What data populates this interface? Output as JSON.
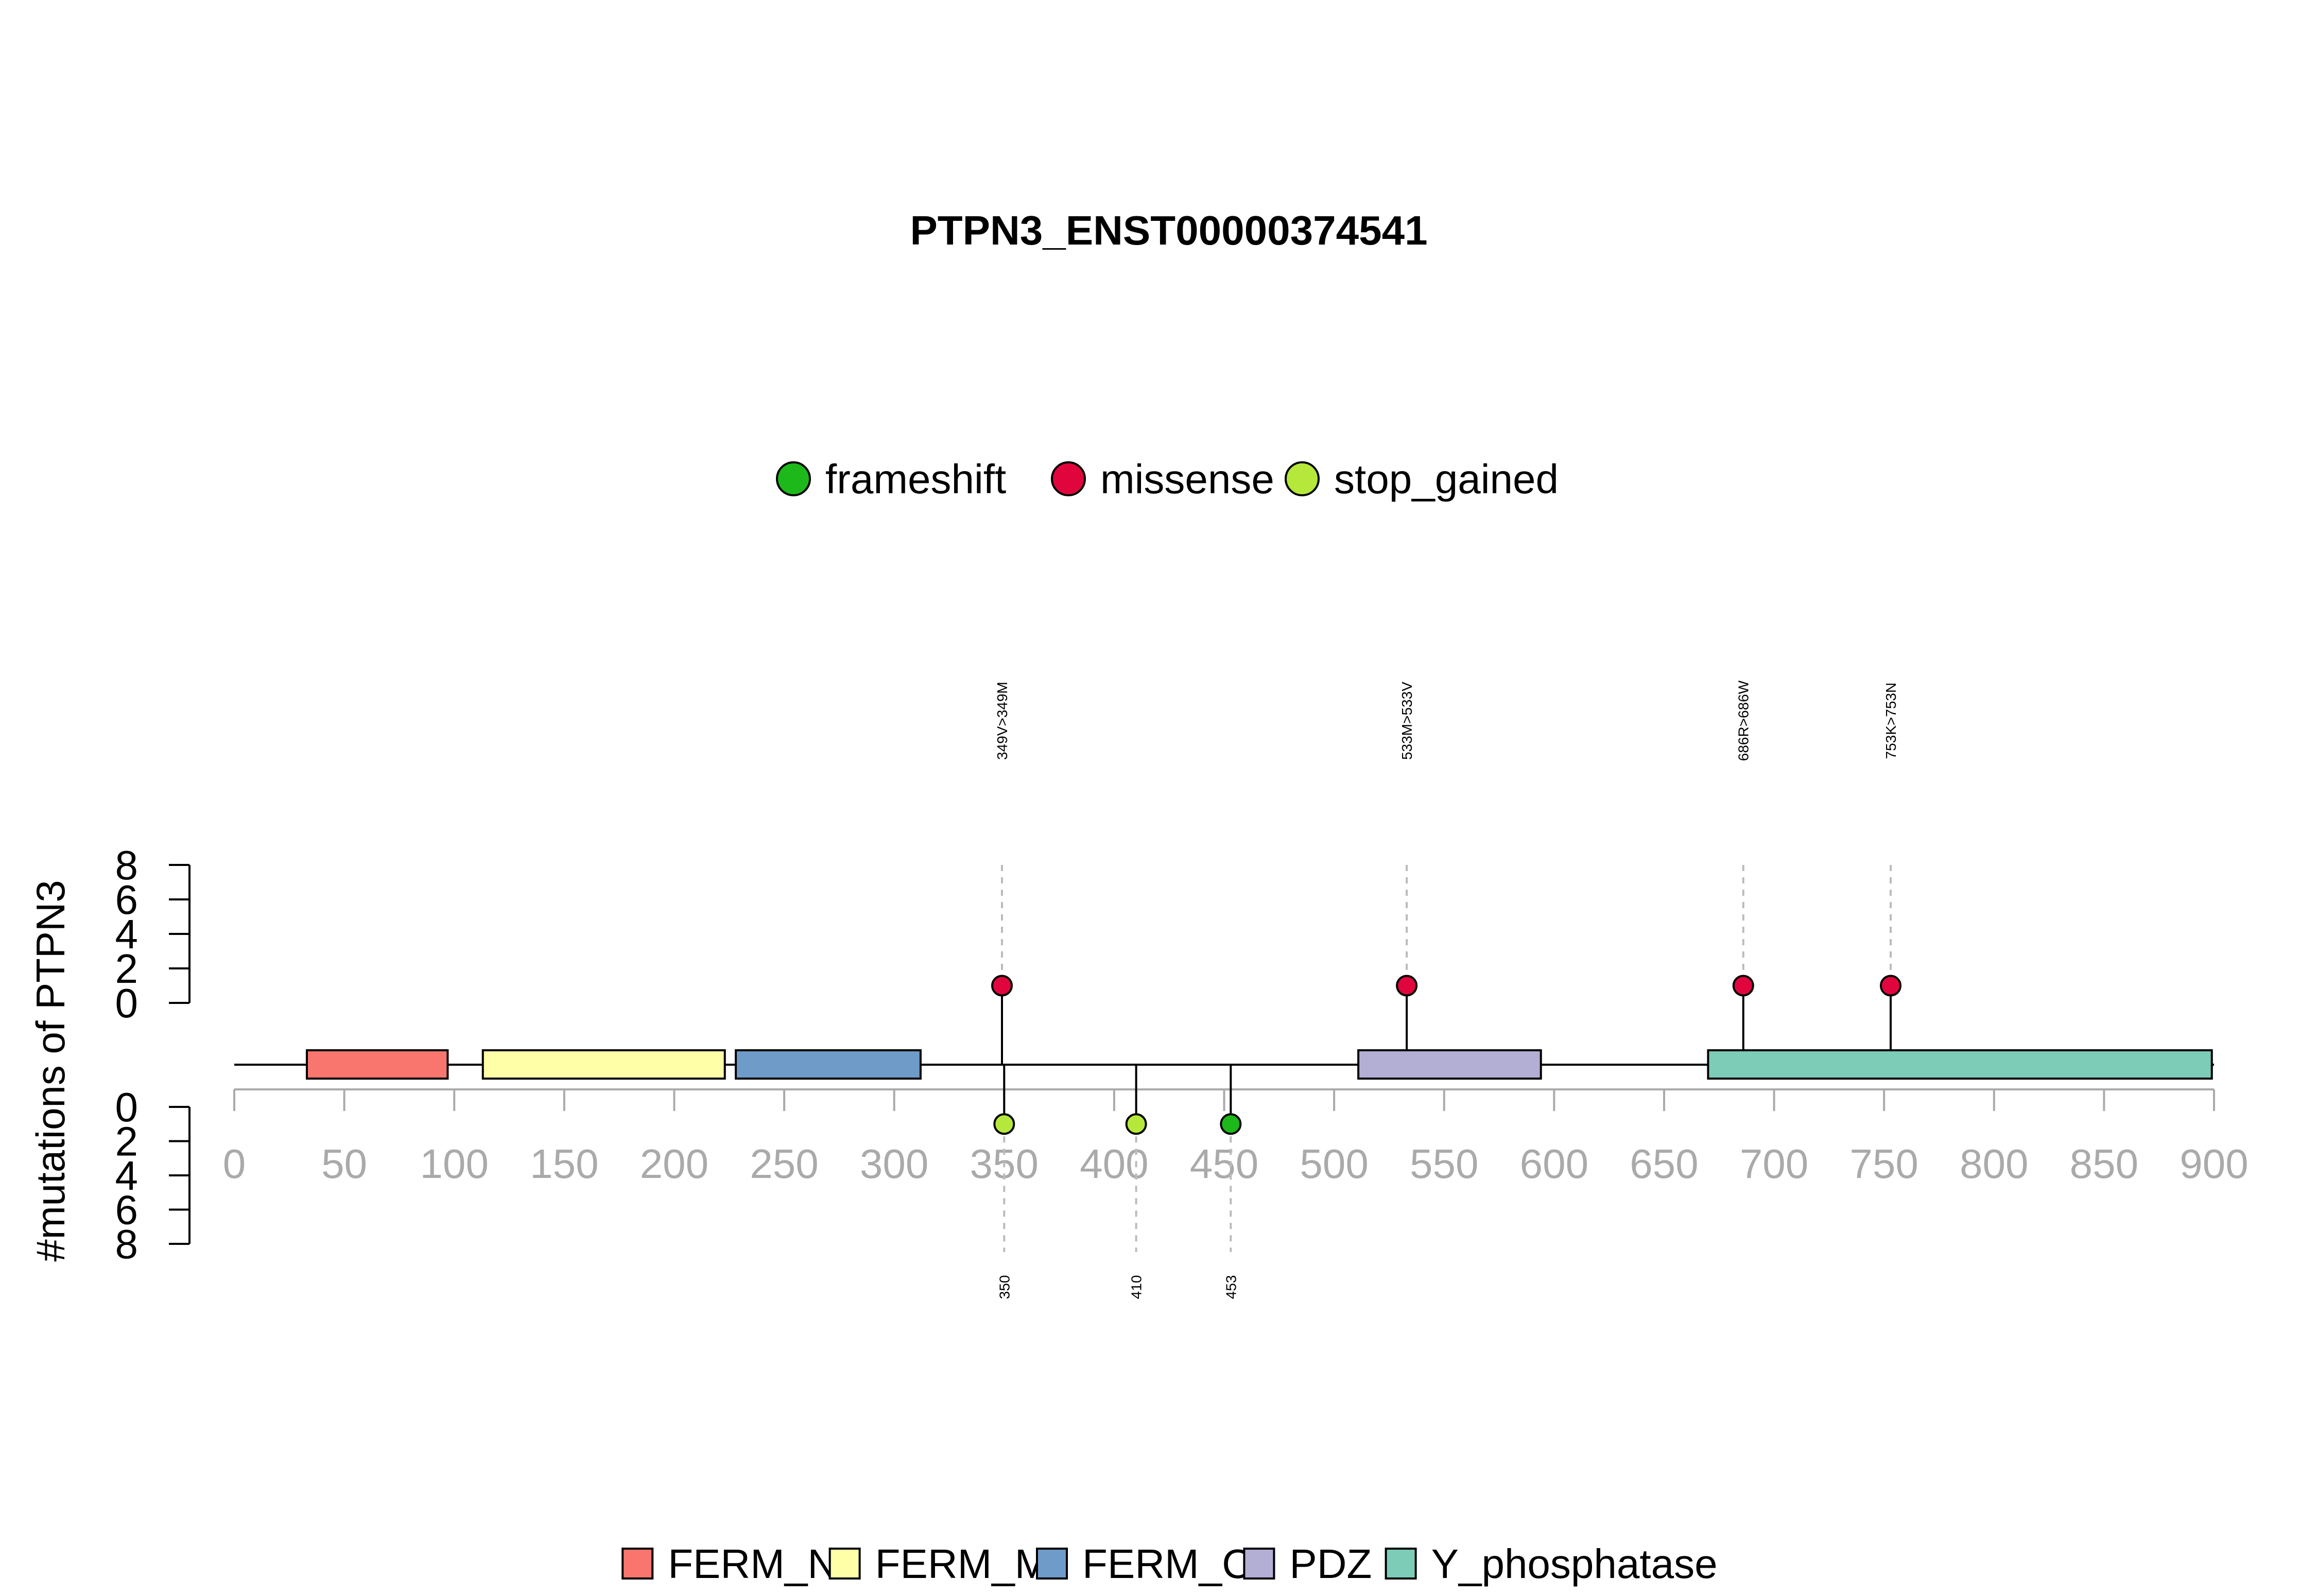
{
  "chart_data": {
    "type": "lollipop",
    "title": "PTPN3_ENST00000374541",
    "ylabel": "#mutations of PTPN3",
    "xlim": [
      0,
      900
    ],
    "x_ticks": [
      0,
      50,
      100,
      150,
      200,
      250,
      300,
      350,
      400,
      450,
      500,
      550,
      600,
      650,
      700,
      750,
      800,
      850,
      900
    ],
    "y_ticks": [
      0,
      2,
      4,
      6,
      8
    ],
    "ylim_top": [
      0,
      8
    ],
    "ylim_bottom": [
      0,
      8
    ],
    "mutation_legend": [
      {
        "label": "frameshift",
        "color": "#1DB81A"
      },
      {
        "label": "missense",
        "color": "#E0063D"
      },
      {
        "label": "stop_gained",
        "color": "#B5E83A"
      }
    ],
    "domains": [
      {
        "name": "FERM_N",
        "start": 33,
        "end": 97,
        "color": "#F8766D"
      },
      {
        "name": "FERM_M",
        "start": 113,
        "end": 223,
        "color": "#FFFFA8"
      },
      {
        "name": "FERM_C",
        "start": 228,
        "end": 312,
        "color": "#6E9BC8"
      },
      {
        "name": "PDZ",
        "start": 511,
        "end": 594,
        "color": "#B3AED4"
      },
      {
        "name": "Y_phosphatase",
        "start": 670,
        "end": 899,
        "color": "#7CCCB8"
      }
    ],
    "top_mutations": [
      {
        "position": 349,
        "count": 1,
        "type": "missense",
        "label": "349V>349M"
      },
      {
        "position": 533,
        "count": 1,
        "type": "missense",
        "label": "533M>533V"
      },
      {
        "position": 686,
        "count": 1,
        "type": "missense",
        "label": "686R>686W"
      },
      {
        "position": 753,
        "count": 1,
        "type": "missense",
        "label": "753K>753N"
      }
    ],
    "bottom_mutations": [
      {
        "position": 350,
        "count": 1,
        "type": "stop_gained",
        "label": "350"
      },
      {
        "position": 410,
        "count": 1,
        "type": "stop_gained",
        "label": "410"
      },
      {
        "position": 453,
        "count": 1,
        "type": "frameshift",
        "label": "453"
      }
    ]
  }
}
